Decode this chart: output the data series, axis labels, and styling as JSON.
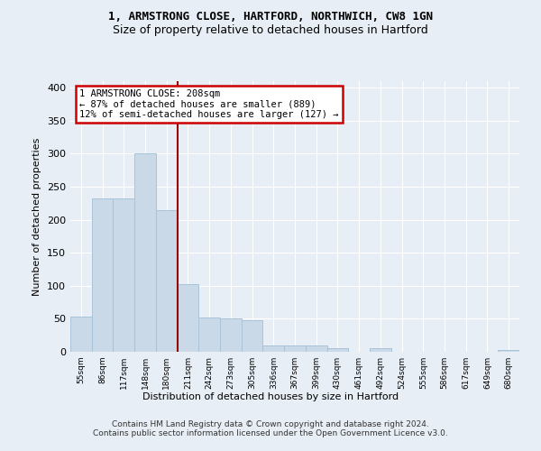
{
  "title1": "1, ARMSTRONG CLOSE, HARTFORD, NORTHWICH, CW8 1GN",
  "title2": "Size of property relative to detached houses in Hartford",
  "xlabel": "Distribution of detached houses by size in Hartford",
  "ylabel": "Number of detached properties",
  "categories": [
    "55sqm",
    "86sqm",
    "117sqm",
    "148sqm",
    "180sqm",
    "211sqm",
    "242sqm",
    "273sqm",
    "305sqm",
    "336sqm",
    "367sqm",
    "399sqm",
    "430sqm",
    "461sqm",
    "492sqm",
    "524sqm",
    "555sqm",
    "586sqm",
    "617sqm",
    "649sqm",
    "680sqm"
  ],
  "values": [
    53,
    233,
    233,
    300,
    215,
    103,
    52,
    50,
    48,
    10,
    10,
    10,
    6,
    0,
    5,
    0,
    0,
    0,
    0,
    0,
    3
  ],
  "bar_color": "#c9d9e8",
  "bar_edge_color": "#a8c4d8",
  "vline_index": 4.5,
  "vline_color": "#990000",
  "annotation_text": "1 ARMSTRONG CLOSE: 208sqm\n← 87% of detached houses are smaller (889)\n12% of semi-detached houses are larger (127) →",
  "annotation_box_color": "#ffffff",
  "annotation_box_edge": "#cc0000",
  "bg_color": "#e8eef5",
  "grid_color": "#ffffff",
  "footnote": "Contains HM Land Registry data © Crown copyright and database right 2024.\nContains public sector information licensed under the Open Government Licence v3.0.",
  "ylim": [
    0,
    410
  ],
  "title1_fontsize": 9,
  "title2_fontsize": 9
}
